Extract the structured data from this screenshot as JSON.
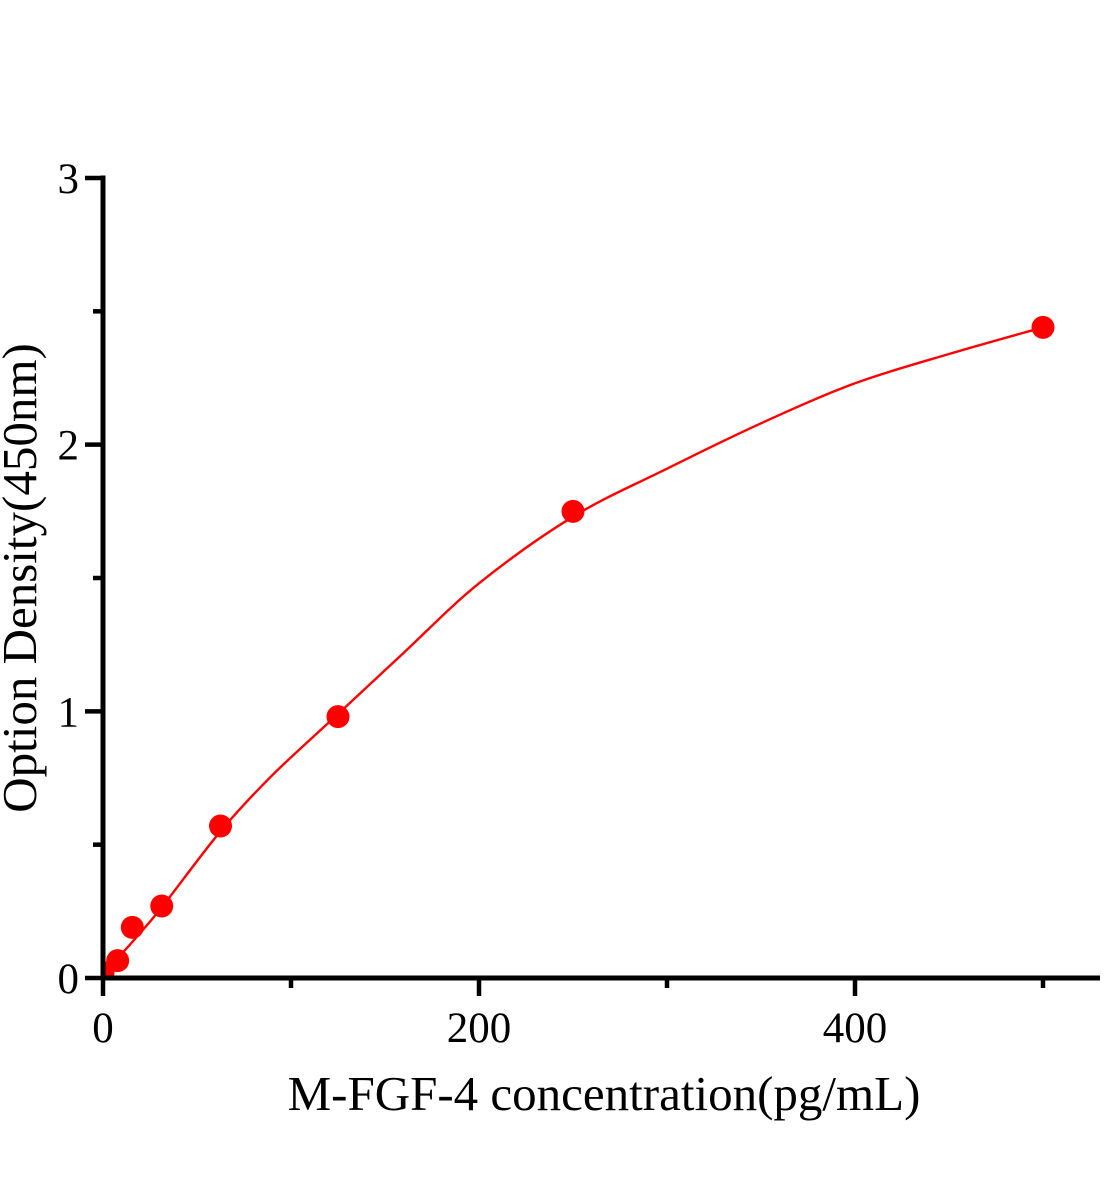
{
  "chart_data": {
    "type": "scatter",
    "xlabel": "M-FGF-4 concentration(pg/mL)",
    "ylabel": "Option Density(450nm)",
    "x_axis": {
      "min": 0,
      "max": 530,
      "major_ticks": [
        0,
        200,
        400
      ],
      "minor_ticks": [
        100,
        300,
        500
      ],
      "tick_labels": [
        "0",
        "200",
        "400"
      ]
    },
    "y_axis": {
      "min": 0,
      "max": 3,
      "major_ticks": [
        0,
        1,
        2,
        3
      ],
      "minor_ticks": [
        0.5,
        1.5,
        2.5
      ],
      "tick_labels": [
        "0",
        "1",
        "2",
        "3"
      ]
    },
    "grid": false,
    "legend": null,
    "series": [
      {
        "name": "standard-points",
        "type": "scatter",
        "marker": "circle",
        "color": "#ff0000",
        "x": [
          0,
          7.8,
          15.6,
          31.25,
          62.5,
          125,
          250,
          500
        ],
        "y": [
          0.02,
          0.065,
          0.19,
          0.27,
          0.57,
          0.98,
          1.75,
          2.44
        ]
      },
      {
        "name": "fit-curve",
        "type": "line",
        "color": "#ff0000",
        "x": [
          0,
          15.6,
          31.25,
          62.5,
          90,
          125,
          160,
          200,
          250,
          300,
          350,
          400,
          450,
          500
        ],
        "y": [
          0.015,
          0.135,
          0.265,
          0.55,
          0.76,
          0.99,
          1.22,
          1.48,
          1.73,
          1.91,
          2.08,
          2.23,
          2.34,
          2.44
        ]
      }
    ],
    "colors": {
      "accent": "#ff0000",
      "axis": "#000000",
      "background": "#ffffff"
    }
  }
}
